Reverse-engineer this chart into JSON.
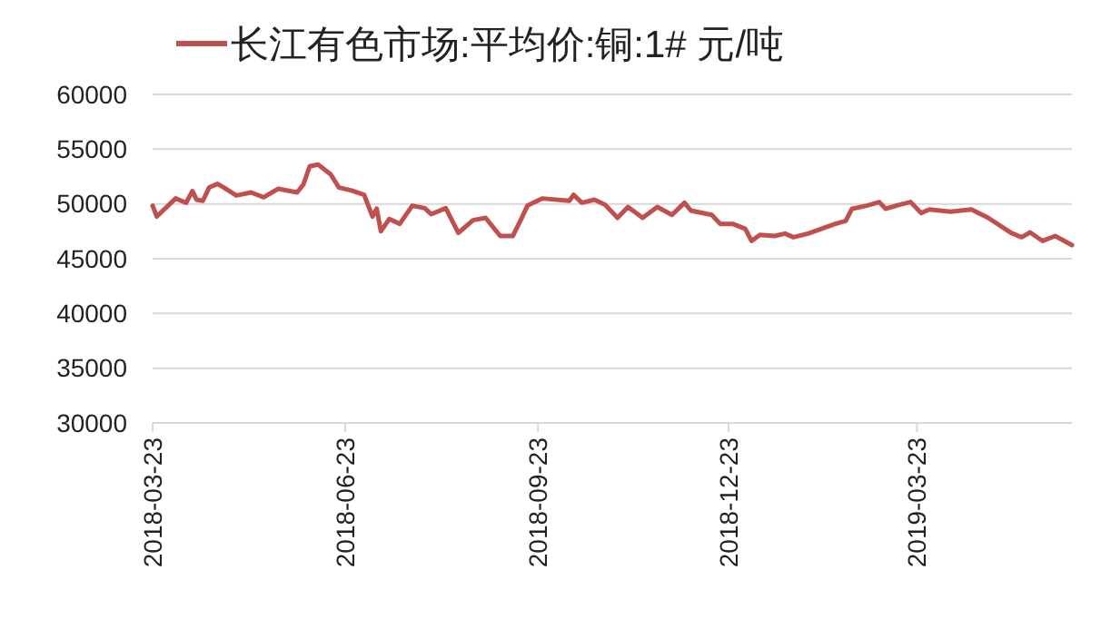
{
  "chart_data": {
    "type": "line",
    "legend": "top",
    "grid": "y",
    "xlim": [
      "2018-03-23",
      "2019-06-05"
    ],
    "xticks": [
      "2018-03-23",
      "2018-06-23",
      "2018-09-23",
      "2018-12-23",
      "2019-03-23"
    ],
    "ylim": [
      30000,
      60000
    ],
    "yticks": [
      30000,
      35000,
      40000,
      45000,
      50000,
      55000,
      60000
    ],
    "x": [
      "2018-03-23",
      "2018-03-25",
      "2018-04-03",
      "2018-04-08",
      "2018-04-11",
      "2018-04-13",
      "2018-04-16",
      "2018-04-19",
      "2018-04-23",
      "2018-04-26",
      "2018-05-02",
      "2018-05-09",
      "2018-05-15",
      "2018-05-22",
      "2018-05-31",
      "2018-06-03",
      "2018-06-06",
      "2018-06-10",
      "2018-06-16",
      "2018-06-20",
      "2018-06-26",
      "2018-07-02",
      "2018-07-06",
      "2018-07-08",
      "2018-07-10",
      "2018-07-14",
      "2018-07-19",
      "2018-07-25",
      "2018-07-31",
      "2018-08-03",
      "2018-08-10",
      "2018-08-16",
      "2018-08-23",
      "2018-08-29",
      "2018-09-05",
      "2018-09-11",
      "2018-09-15",
      "2018-09-18",
      "2018-09-25",
      "2018-10-08",
      "2018-10-10",
      "2018-10-14",
      "2018-10-20",
      "2018-10-25",
      "2018-10-31",
      "2018-11-05",
      "2018-11-12",
      "2018-11-19",
      "2018-11-26",
      "2018-12-02",
      "2018-12-05",
      "2018-12-15",
      "2018-12-19",
      "2018-12-25",
      "2018-12-31",
      "2019-01-03",
      "2019-01-07",
      "2019-01-14",
      "2019-01-19",
      "2019-01-23",
      "2019-01-30",
      "2019-02-12",
      "2019-02-17",
      "2019-02-20",
      "2019-02-27",
      "2019-03-05",
      "2019-03-08",
      "2019-03-15",
      "2019-03-20",
      "2019-03-25",
      "2019-03-29",
      "2019-04-08",
      "2019-04-18",
      "2019-04-26",
      "2019-05-07",
      "2019-05-12",
      "2019-05-16",
      "2019-05-22",
      "2019-05-28",
      "2019-06-05"
    ],
    "series": [
      {
        "name": "长江有色市场:平均价:铜:1# 元/吨",
        "color": "#c0504d",
        "values": [
          49840,
          48850,
          50500,
          50100,
          51170,
          50390,
          50280,
          51500,
          51830,
          51500,
          50770,
          51050,
          50610,
          51380,
          51050,
          51770,
          53430,
          53600,
          52710,
          51500,
          51220,
          50830,
          48850,
          49560,
          47510,
          48620,
          48180,
          49840,
          49610,
          49060,
          49610,
          47350,
          48510,
          48730,
          47070,
          47070,
          48620,
          49840,
          50500,
          50280,
          50830,
          50110,
          50390,
          49940,
          48730,
          49720,
          48730,
          49720,
          49000,
          50110,
          49390,
          49000,
          48180,
          48180,
          47730,
          46620,
          47180,
          47070,
          47290,
          46960,
          47290,
          48180,
          48450,
          49560,
          49840,
          50170,
          49560,
          49940,
          50170,
          49170,
          49500,
          49280,
          49500,
          48730,
          47350,
          46960,
          47400,
          46620,
          47070,
          46240
        ]
      }
    ]
  }
}
